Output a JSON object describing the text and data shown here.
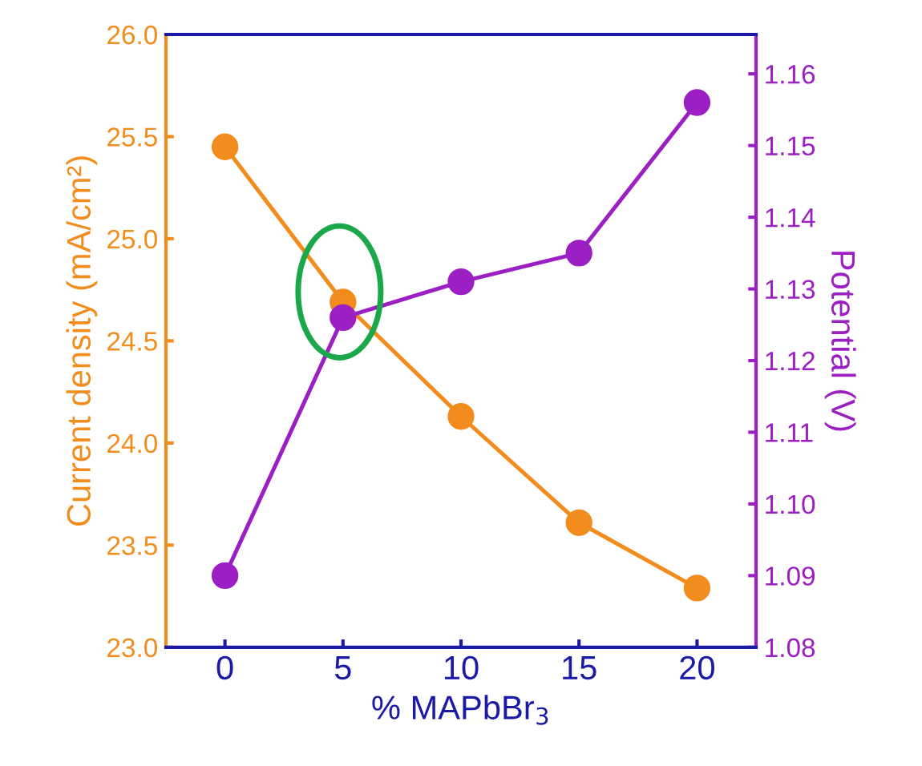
{
  "chart_data": {
    "type": "line",
    "xlabel": "% MAPbBr$_{3}$",
    "ylabel": "Current density (mA/cm²)",
    "y2label": "Potential (V)",
    "x": [
      0,
      5,
      10,
      15,
      20
    ],
    "series": [
      {
        "color": "#f28c1c",
        "values": [
          25.45,
          24.69,
          24.13,
          23.61,
          23.29
        ]
      },
      {
        "color": "#9b1fc2",
        "values": [
          1.09,
          1.126,
          1.131,
          1.135,
          1.156
        ],
        "axis": "y2"
      }
    ],
    "xlim": [
      -2.5,
      22.5
    ],
    "xticks": [
      0,
      5,
      10,
      15,
      20
    ],
    "ylim": [
      23.0,
      26.0
    ],
    "yticks": [
      {
        "value": 23.0,
        "label": "23.0"
      },
      23.5,
      {
        "value": 24.0,
        "label": "24.0"
      },
      24.5,
      {
        "value": 25.0,
        "label": "25.0"
      },
      25.5,
      {
        "value": 26.0,
        "label": "26.0"
      }
    ],
    "y2lim": [
      1.08,
      1.1655
    ],
    "y2ticks": [
      1.08,
      1.09,
      {
        "value": 1.1,
        "label": "1.10"
      },
      1.11,
      1.12,
      1.13,
      1.14,
      1.15,
      1.16
    ],
    "marker": "circle",
    "line_style": "solid",
    "grid": false,
    "legend": false
  }
}
